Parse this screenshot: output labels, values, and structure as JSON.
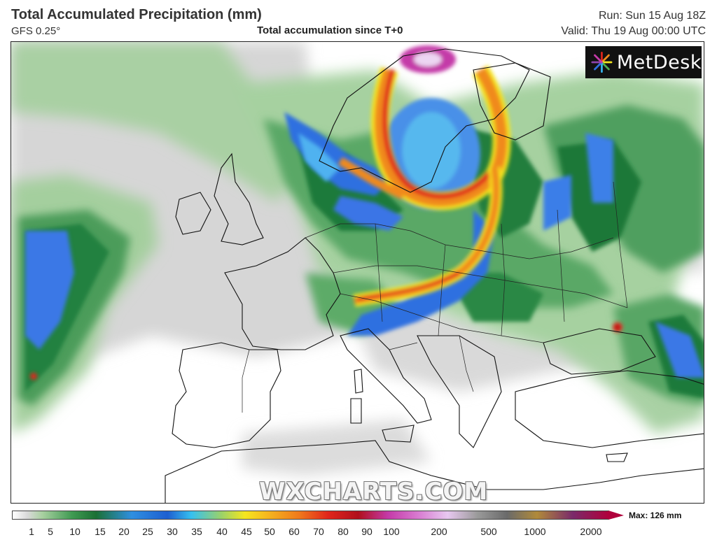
{
  "header": {
    "title": "Total Accumulated Precipitation (mm)",
    "model": "GFS 0.25°",
    "subtitle": "Total accumulation since T+0",
    "run": "Run: Sun 15 Aug 18Z",
    "valid": "Valid: Thu 19 Aug 00:00 UTC"
  },
  "logo": {
    "text": "MetDesk"
  },
  "watermark": "WXCHARTS.COM",
  "legend": {
    "max_label": "Max: 126 mm",
    "ticks": [
      "1",
      "5",
      "10",
      "15",
      "20",
      "25",
      "30",
      "35",
      "40",
      "45",
      "50",
      "60",
      "70",
      "80",
      "90",
      "100",
      "200",
      "500",
      "1000",
      "2000"
    ]
  },
  "colors": {
    "light_gray": "#d9d9d9",
    "light_green": "#a8cfa0",
    "green": "#4e9e5c",
    "dark_green": "#1f7a3a",
    "blue": "#2f6fe0",
    "cyan": "#36b6f0",
    "yellow": "#f5e61e",
    "orange": "#f08a1c",
    "red": "#e0251b",
    "dark_red": "#9c0a16",
    "magenta": "#c43aa8",
    "lavender": "#e8c8f0"
  }
}
